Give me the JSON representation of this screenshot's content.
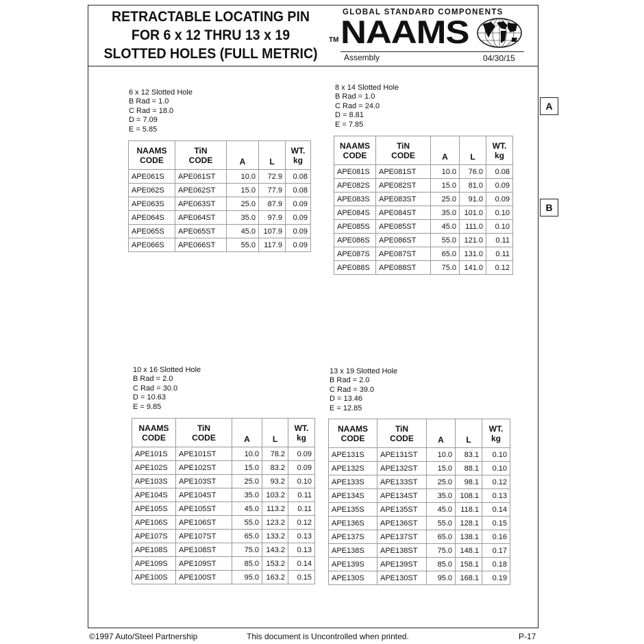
{
  "header": {
    "title_lines": [
      "RETRACTABLE LOCATING PIN",
      "FOR 6 x 12 THRU 13 x 19",
      "SLOTTED HOLES (FULL METRIC)"
    ],
    "tagline": "GLOBAL STANDARD COMPONENTS",
    "logo": "NAAMS",
    "trademark": "TM",
    "section": "Assembly",
    "date": "04/30/15"
  },
  "tags": [
    "A",
    "B"
  ],
  "columns": {
    "naams": [
      "NAAMS",
      "CODE"
    ],
    "tin": [
      "TiN",
      "CODE"
    ],
    "a": "A",
    "l": "L",
    "wt": [
      "WT.",
      "kg"
    ]
  },
  "tables": [
    {
      "specs": [
        "6 x 12 Slotted Hole",
        "B Rad = 1.0",
        "C Rad = 18.0",
        "D = 7.09",
        "E = 5.85"
      ],
      "rows": [
        [
          "APE061S",
          "APE061ST",
          "10.0",
          "72.9",
          "0.08"
        ],
        [
          "APE062S",
          "APE062ST",
          "15.0",
          "77.9",
          "0.08"
        ],
        [
          "APE063S",
          "APE063ST",
          "25.0",
          "87.9",
          "0.09"
        ],
        [
          "APE064S",
          "APE064ST",
          "35.0",
          "97.9",
          "0.09"
        ],
        [
          "APE065S",
          "APE065ST",
          "45.0",
          "107.9",
          "0.09"
        ],
        [
          "APE066S",
          "APE066ST",
          "55.0",
          "117.9",
          "0.09"
        ]
      ]
    },
    {
      "specs": [
        "8 x 14 Slotted Hole",
        "B Rad = 1.0",
        "C Rad = 24.0",
        "D = 8.81",
        "E = 7.85"
      ],
      "rows": [
        [
          "APE081S",
          "APE081ST",
          "10.0",
          "76.0",
          "0.08"
        ],
        [
          "APE082S",
          "APE082ST",
          "15.0",
          "81.0",
          "0.09"
        ],
        [
          "APE083S",
          "APE083ST",
          "25.0",
          "91.0",
          "0.09"
        ],
        [
          "APE084S",
          "APE084ST",
          "35.0",
          "101.0",
          "0.10"
        ],
        [
          "APE085S",
          "APE085ST",
          "45.0",
          "111.0",
          "0.10"
        ],
        [
          "APE086S",
          "APE086ST",
          "55.0",
          "121.0",
          "0.11"
        ],
        [
          "APE087S",
          "APE087ST",
          "65.0",
          "131.0",
          "0.11"
        ],
        [
          "APE088S",
          "APE088ST",
          "75.0",
          "141.0",
          "0.12"
        ]
      ]
    },
    {
      "specs": [
        "10 x 16 Slotted Hole",
        "B Rad = 2.0",
        "C Rad = 30.0",
        "D = 10.63",
        "E = 9.85"
      ],
      "rows": [
        [
          "APE101S",
          "APE101ST",
          "10.0",
          "78.2",
          "0.09"
        ],
        [
          "APE102S",
          "APE102ST",
          "15.0",
          "83.2",
          "0.09"
        ],
        [
          "APE103S",
          "APE103ST",
          "25.0",
          "93.2",
          "0.10"
        ],
        [
          "APE104S",
          "APE104ST",
          "35.0",
          "103.2",
          "0.11"
        ],
        [
          "APE105S",
          "APE105ST",
          "45.0",
          "113.2",
          "0.11"
        ],
        [
          "APE106S",
          "APE106ST",
          "55.0",
          "123.2",
          "0.12"
        ],
        [
          "APE107S",
          "APE107ST",
          "65.0",
          "133.2",
          "0.13"
        ],
        [
          "APE108S",
          "APE108ST",
          "75.0",
          "143.2",
          "0.13"
        ],
        [
          "APE109S",
          "APE109ST",
          "85.0",
          "153.2",
          "0.14"
        ],
        [
          "APE100S",
          "APE100ST",
          "95.0",
          "163.2",
          "0.15"
        ]
      ]
    },
    {
      "specs": [
        "13 x 19 Slotted Hole",
        "B Rad = 2.0",
        "C Rad = 39.0",
        "D = 13.46",
        "E = 12.85"
      ],
      "rows": [
        [
          "APE131S",
          "APE131ST",
          "10.0",
          "83.1",
          "0.10"
        ],
        [
          "APE132S",
          "APE132ST",
          "15.0",
          "88.1",
          "0.10"
        ],
        [
          "APE133S",
          "APE133ST",
          "25.0",
          "98.1",
          "0.12"
        ],
        [
          "APE134S",
          "APE134ST",
          "35.0",
          "108.1",
          "0.13"
        ],
        [
          "APE135S",
          "APE135ST",
          "45.0",
          "118.1",
          "0.14"
        ],
        [
          "APE136S",
          "APE136ST",
          "55.0",
          "128.1",
          "0.15"
        ],
        [
          "APE137S",
          "APE137ST",
          "65.0",
          "138.1",
          "0.16"
        ],
        [
          "APE138S",
          "APE138ST",
          "75.0",
          "148.1",
          "0.17"
        ],
        [
          "APE139S",
          "APE139ST",
          "85.0",
          "158.1",
          "0.18"
        ],
        [
          "APE130S",
          "APE130ST",
          "95.0",
          "168.1",
          "0.19"
        ]
      ]
    }
  ],
  "footer": {
    "copyright": "©1997 Auto/Steel Partnership",
    "notice": "This document is Uncontrolled when printed.",
    "page": "P-17"
  }
}
